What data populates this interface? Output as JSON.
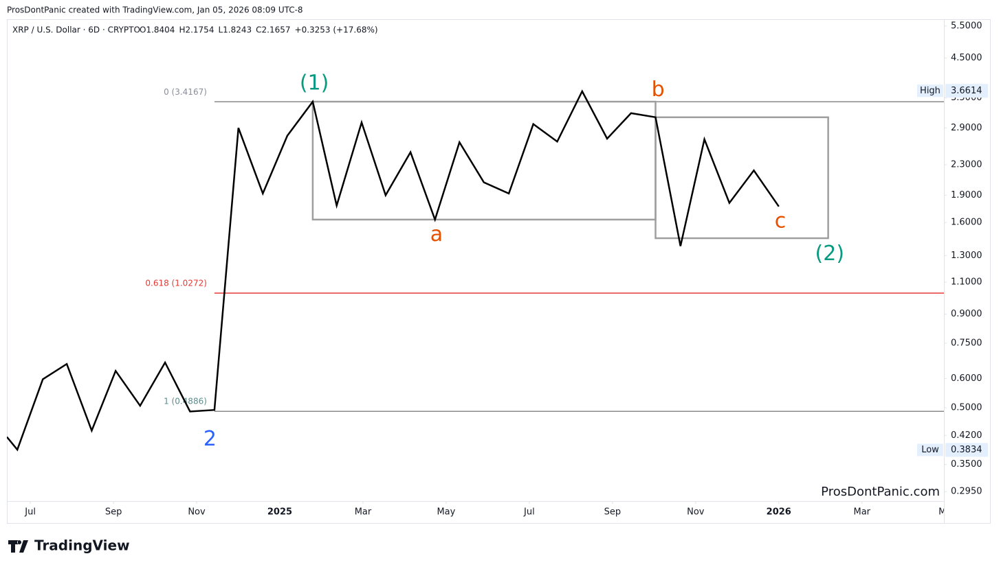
{
  "header": "ProsDontPanic created with TradingView.com, Jan 05, 2026 08:09 UTC-8",
  "footer": {
    "logo": "TradingView"
  },
  "chart_data": {
    "type": "line",
    "symbol": "XRP / U.S. Dollar · 6D · CRYPTO",
    "ohlc": [
      "O1.8404",
      "H2.1754",
      "L1.8243",
      "C2.1657",
      "+0.3253 (+17.68%)"
    ],
    "watermark": "ProsDontPanic.com",
    "color": "#000000",
    "x": [
      2024.453,
      2024.474,
      2024.525,
      2024.573,
      2024.623,
      2024.671,
      2024.72,
      2024.77,
      2024.82,
      2024.869,
      2024.917,
      2024.966,
      2025.015,
      2025.066,
      2025.114,
      2025.164,
      2025.212,
      2025.262,
      2025.311,
      2025.36,
      2025.409,
      2025.459,
      2025.508,
      2025.556,
      2025.606,
      2025.656,
      2025.704,
      2025.753,
      2025.803,
      2025.851,
      2025.901,
      2025.95,
      2026.0
    ],
    "values": [
      0.416,
      0.384,
      0.598,
      0.658,
      0.433,
      0.63,
      0.506,
      0.664,
      0.488,
      0.493,
      2.9,
      1.92,
      2.76,
      3.42,
      1.78,
      3.0,
      1.9,
      2.49,
      1.63,
      2.65,
      2.06,
      1.92,
      2.97,
      2.66,
      3.65,
      2.71,
      3.18,
      3.1,
      1.38,
      2.7,
      1.81,
      2.22,
      1.77
    ],
    "xlim": [
      2024.453,
      2026.331
    ],
    "xticks": [
      {
        "value": 2024.5,
        "label": "Jul"
      },
      {
        "value": 2024.6667,
        "label": "Sep"
      },
      {
        "value": 2024.8333,
        "label": "Nov"
      },
      2025,
      {
        "value": 2025.1667,
        "label": "Mar"
      },
      {
        "value": 2025.3333,
        "label": "May"
      },
      {
        "value": 2025.5,
        "label": "Jul"
      },
      {
        "value": 2025.6667,
        "label": "Sep"
      },
      {
        "value": 2025.8333,
        "label": "Nov"
      },
      2026,
      {
        "value": 2026.1667,
        "label": "Mar"
      },
      {
        "value": 2026.3333,
        "label": "Ma"
      }
    ],
    "ylim": [
      0.278,
      5.74
    ],
    "yticks": [
      {
        "value": 5.5,
        "label": "5.5000"
      },
      {
        "value": 4.5,
        "label": "4.5000"
      },
      {
        "value": 3.5,
        "label": "3.5000"
      },
      {
        "value": 2.9,
        "label": "2.9000"
      },
      {
        "value": 2.3,
        "label": "2.3000"
      },
      {
        "value": 1.9,
        "label": "1.9000"
      },
      {
        "value": 1.6,
        "label": "1.6000"
      },
      {
        "value": 1.3,
        "label": "1.3000"
      },
      {
        "value": 1.1,
        "label": "1.1000"
      },
      {
        "value": 0.9,
        "label": "0.9000"
      },
      {
        "value": 0.75,
        "label": "0.7500"
      },
      {
        "value": 0.6,
        "label": "0.6000"
      },
      {
        "value": 0.5,
        "label": "0.5000"
      },
      {
        "value": 0.42,
        "label": "0.4200"
      },
      {
        "value": 0.35,
        "label": "0.3500"
      },
      {
        "value": 0.295,
        "label": "0.2950"
      }
    ],
    "log_scale": true,
    "grid": false,
    "fib_start": 2024.869,
    "fib_levels": [
      {
        "label": "0 (3.4167)",
        "value": 3.4167,
        "color": "#8a8a8a",
        "label_color": "#8a8e99"
      },
      {
        "label": "0.618 (1.0272)",
        "value": 1.0272,
        "color": "#e53935",
        "label_color": "#e53935"
      },
      {
        "label": "1 (0.4886)",
        "value": 0.4886,
        "color": "#8a8a8a",
        "label_color": "#5f8c8c"
      }
    ],
    "boxes": [
      {
        "x": [
          2025.066,
          2025.753
        ],
        "y": [
          3.42,
          1.63
        ],
        "color": "#9e9e9e"
      },
      {
        "x": [
          2025.753,
          2026.099
        ],
        "y": [
          3.1,
          1.45
        ],
        "color": "#9e9e9e"
      }
    ],
    "wave_labels": [
      {
        "text": "(1)",
        "x": 2025.069,
        "y": 3.83,
        "color": "#089981"
      },
      {
        "text": "b",
        "x": 2025.758,
        "y": 3.67,
        "color": "#e65100"
      },
      {
        "text": "a",
        "x": 2025.314,
        "y": 1.48,
        "color": "#e65100"
      },
      {
        "text": "c",
        "x": 2026.003,
        "y": 1.61,
        "color": "#e65100"
      },
      {
        "text": "(2)",
        "x": 2026.102,
        "y": 1.31,
        "color": "#089981"
      },
      {
        "text": "2",
        "x": 2024.86,
        "y": 0.409,
        "color": "#2962ff"
      }
    ],
    "price_labels": [
      {
        "label": "High",
        "value": 3.6614
      },
      {
        "label": "Low",
        "value": 0.3834
      }
    ]
  }
}
